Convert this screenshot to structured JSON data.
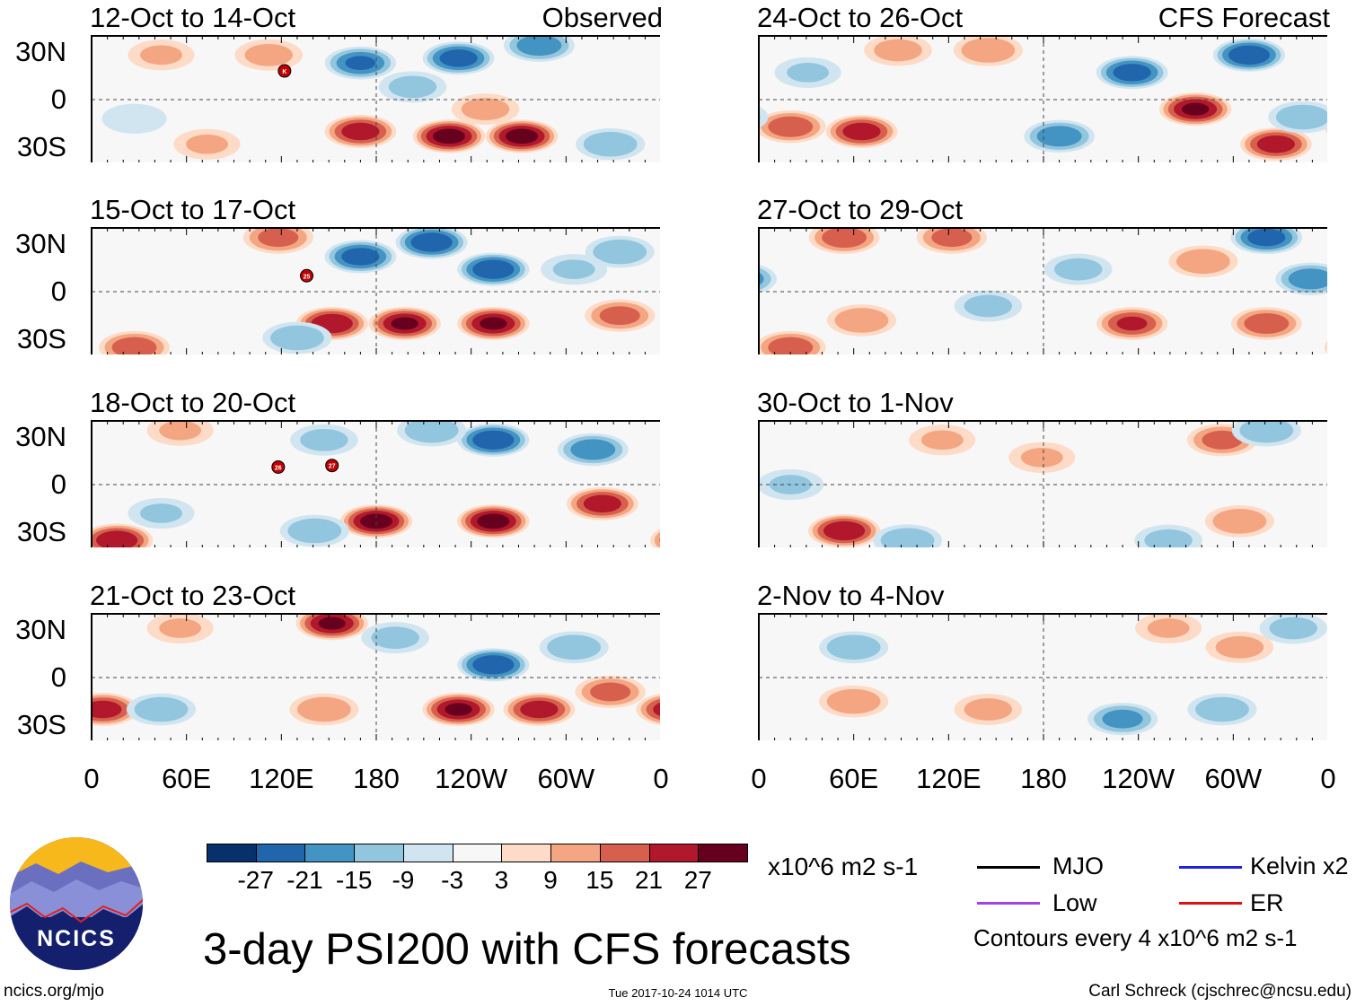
{
  "title": "3-day PSI200 with CFS forecasts",
  "units": "x10^6 m2 s-1",
  "footer": {
    "left": "ncics.org/mjo",
    "center": "Tue 2017-10-24 1014 UTC",
    "right": "Carl Schreck (cjschrec@ncsu.edu)"
  },
  "logo_text": "NCICS",
  "legend": {
    "items": [
      {
        "label": "MJO",
        "color": "#000000"
      },
      {
        "label": "Kelvin x2",
        "color": "#2020e0"
      },
      {
        "label": "Low",
        "color": "#a040f0"
      },
      {
        "label": "ER",
        "color": "#e01010"
      }
    ],
    "note": "Contours every 4 x10^6 m2 s-1"
  },
  "chart_data": {
    "type": "heatmap",
    "colorbar": {
      "levels": [
        "-27",
        "-21",
        "-15",
        "-9",
        "-3",
        "3",
        "9",
        "15",
        "21",
        "27"
      ],
      "colors": [
        "#08306b",
        "#2166ac",
        "#4393c3",
        "#92c5de",
        "#d1e5f0",
        "#f7f7f7",
        "#fddbc7",
        "#f4a582",
        "#d6604d",
        "#b2182b",
        "#67001f"
      ]
    },
    "lat_ticks": [
      "30N",
      "0",
      "30S"
    ],
    "lon_ticks": [
      "0",
      "60E",
      "120E",
      "180",
      "120W",
      "60W",
      "0"
    ],
    "lon_range": [
      0,
      360
    ],
    "lat_range": [
      -40,
      40
    ],
    "panels": [
      {
        "title": "12-Oct to 14-Oct",
        "tag": "Observed",
        "storms": [
          {
            "label": "K",
            "lon": 122,
            "lat": 18
          }
        ],
        "anomalies": [
          [
            170,
            23,
            -22
          ],
          [
            232,
            26,
            -25
          ],
          [
            283,
            34,
            -20
          ],
          [
            203,
            8,
            -12
          ],
          [
            170,
            -20,
            25
          ],
          [
            226,
            -23,
            30
          ],
          [
            272,
            -23,
            30
          ],
          [
            249,
            -6,
            12
          ],
          [
            44,
            28,
            10
          ],
          [
            112,
            28,
            12
          ],
          [
            328,
            -28,
            -15
          ],
          [
            27,
            -12,
            -8
          ],
          [
            73,
            -28,
            10
          ]
        ]
      },
      {
        "title": "15-Oct to 17-Oct",
        "tag": "",
        "storms": [
          {
            "label": "25",
            "lon": 136,
            "lat": 10
          }
        ],
        "anomalies": [
          [
            118,
            34,
            18
          ],
          [
            170,
            22,
            -25
          ],
          [
            215,
            31,
            -27
          ],
          [
            254,
            14,
            -27
          ],
          [
            334,
            25,
            -15
          ],
          [
            152,
            -20,
            27
          ],
          [
            198,
            -20,
            28
          ],
          [
            254,
            -20,
            28
          ],
          [
            27,
            -35,
            20
          ],
          [
            334,
            -15,
            18
          ],
          [
            130,
            -29,
            -15
          ],
          [
            305,
            14,
            -10
          ]
        ]
      },
      {
        "title": "18-Oct to 20-Oct",
        "tag": "",
        "storms": [
          {
            "label": "26",
            "lon": 118,
            "lat": 11
          },
          {
            "label": "27",
            "lon": 152,
            "lat": 12
          }
        ],
        "anomalies": [
          [
            16,
            -35,
            27
          ],
          [
            254,
            28,
            -27
          ],
          [
            317,
            22,
            -20
          ],
          [
            215,
            34,
            -15
          ],
          [
            180,
            -23,
            30
          ],
          [
            254,
            -23,
            30
          ],
          [
            323,
            -12,
            25
          ],
          [
            141,
            -29,
            -15
          ],
          [
            56,
            34,
            10
          ],
          [
            44,
            -18,
            -10
          ],
          [
            147,
            28,
            -12
          ]
        ]
      },
      {
        "title": "21-Oct to 23-Oct",
        "tag": "",
        "storms": [],
        "anomalies": [
          [
            152,
            34,
            28
          ],
          [
            192,
            25,
            -12
          ],
          [
            254,
            8,
            -27
          ],
          [
            232,
            -20,
            28
          ],
          [
            283,
            -20,
            25
          ],
          [
            7,
            -20,
            25
          ],
          [
            328,
            -9,
            18
          ],
          [
            44,
            -20,
            -15
          ],
          [
            147,
            -20,
            15
          ],
          [
            305,
            19,
            -15
          ],
          [
            56,
            31,
            10
          ]
        ]
      },
      {
        "title": "24-Oct to 26-Oct",
        "tag": "CFS Forecast",
        "storms": [],
        "anomalies": [
          [
            20,
            -17,
            20
          ],
          [
            65,
            -20,
            25
          ],
          [
            236,
            17,
            -25
          ],
          [
            310,
            28,
            -27
          ],
          [
            276,
            -6,
            28
          ],
          [
            327,
            -28,
            25
          ],
          [
            190,
            -23,
            -20
          ],
          [
            88,
            31,
            12
          ],
          [
            145,
            31,
            15
          ],
          [
            344,
            -11,
            -15
          ],
          [
            31,
            17,
            -10
          ]
        ]
      },
      {
        "title": "27-Oct to 29-Oct",
        "tag": "",
        "storms": [],
        "anomalies": [
          [
            54,
            34,
            20
          ],
          [
            122,
            34,
            18
          ],
          [
            321,
            34,
            -25
          ],
          [
            281,
            19,
            15
          ],
          [
            349,
            8,
            -20
          ],
          [
            20,
            -35,
            20
          ],
          [
            65,
            -18,
            15
          ],
          [
            236,
            -20,
            22
          ],
          [
            321,
            -20,
            20
          ],
          [
            145,
            -9,
            -12
          ],
          [
            202,
            14,
            -12
          ]
        ]
      },
      {
        "title": "30-Oct to 1-Nov",
        "tag": "",
        "storms": [],
        "anomalies": [
          [
            54,
            -29,
            27
          ],
          [
            94,
            -35,
            -15
          ],
          [
            293,
            28,
            18
          ],
          [
            321,
            34,
            -15
          ],
          [
            179,
            17,
            10
          ],
          [
            259,
            -35,
            -12
          ],
          [
            304,
            -23,
            15
          ],
          [
            20,
            0,
            -10
          ],
          [
            116,
            28,
            10
          ]
        ]
      },
      {
        "title": "2-Nov to 4-Nov",
        "tag": "",
        "storms": [],
        "anomalies": [
          [
            60,
            19,
            -15
          ],
          [
            60,
            -15,
            15
          ],
          [
            145,
            -20,
            12
          ],
          [
            230,
            -26,
            -18
          ],
          [
            293,
            -20,
            -15
          ],
          [
            304,
            19,
            12
          ],
          [
            338,
            31,
            -12
          ],
          [
            259,
            31,
            10
          ]
        ]
      }
    ]
  }
}
